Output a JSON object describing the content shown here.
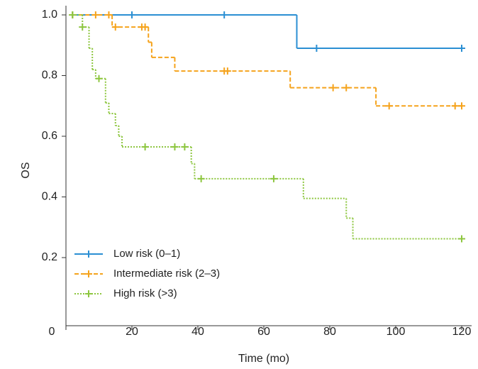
{
  "chart_data": {
    "type": "step",
    "x_label": "Time (mo)",
    "y_label": "OS",
    "xlim": [
      0,
      120
    ],
    "ylim": [
      0,
      1.0
    ],
    "xticks": [
      0,
      20,
      40,
      60,
      80,
      100,
      120
    ],
    "yticks": [
      0.2,
      0.4,
      0.6,
      0.8,
      {
        "value": 1.0,
        "label": "1.0"
      }
    ],
    "legend_position": "lower left",
    "series": [
      {
        "name": "Low risk (0–1)",
        "color": "#2b8fd3",
        "dash": "solid",
        "x": [
          2,
          70,
          120
        ],
        "values": [
          1.0,
          0.89,
          0.89
        ],
        "censor_x": [
          2,
          20,
          48,
          76,
          120
        ],
        "censor_values": [
          1.0,
          1.0,
          1.0,
          0.89,
          0.89
        ]
      },
      {
        "name": "Intermediate risk (2–3)",
        "color": "#f5a31c",
        "dash": "dashed",
        "x": [
          2,
          14,
          25,
          26,
          33,
          68,
          94,
          120
        ],
        "values": [
          1.0,
          0.96,
          0.91,
          0.86,
          0.815,
          0.76,
          0.7,
          0.7
        ],
        "censor_x": [
          2,
          9,
          13,
          15,
          23,
          24,
          48,
          49,
          81,
          85,
          98,
          118,
          120
        ],
        "censor_values": [
          1.0,
          1.0,
          1.0,
          0.96,
          0.96,
          0.96,
          0.815,
          0.815,
          0.76,
          0.76,
          0.7,
          0.7,
          0.7
        ]
      },
      {
        "name": "High risk (>3)",
        "color": "#8dc63f",
        "dash": "dotted",
        "x": [
          2,
          5,
          7,
          8,
          9,
          12,
          13,
          15,
          16,
          17,
          38,
          39,
          72,
          85,
          87,
          120
        ],
        "values": [
          1.0,
          0.96,
          0.89,
          0.82,
          0.79,
          0.71,
          0.675,
          0.635,
          0.6,
          0.565,
          0.51,
          0.46,
          0.395,
          0.33,
          0.262,
          0.262
        ],
        "censor_x": [
          2,
          5,
          10,
          24,
          33,
          36,
          41,
          63,
          120
        ],
        "censor_values": [
          1.0,
          0.96,
          0.79,
          0.565,
          0.565,
          0.565,
          0.46,
          0.46,
          0.262
        ]
      }
    ]
  }
}
